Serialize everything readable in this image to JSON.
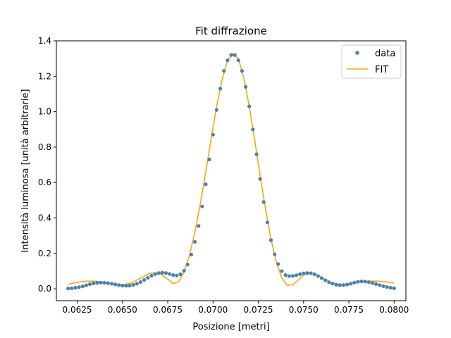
{
  "chart_data": {
    "type": "scatter",
    "title": "Fit diffrazione",
    "xlabel": "Posizione [metri]",
    "ylabel": "Intensità luminosa [unità arbitrarie]",
    "xlim": [
      0.06135,
      0.08065
    ],
    "ylim": [
      -0.067,
      1.4
    ],
    "x_ticks": [
      "0.0625",
      "0.0650",
      "0.0675",
      "0.0700",
      "0.0725",
      "0.0750",
      "0.0775",
      "0.0800"
    ],
    "x_tick_values": [
      0.0625,
      0.065,
      0.0675,
      0.07,
      0.0725,
      0.075,
      0.0775,
      0.08
    ],
    "y_ticks": [
      "0.0",
      "0.2",
      "0.4",
      "0.6",
      "0.8",
      "1.0",
      "1.2",
      "1.4"
    ],
    "y_tick_values": [
      0.0,
      0.2,
      0.4,
      0.6,
      0.8,
      1.0,
      1.2,
      1.4
    ],
    "grid": false,
    "legend": "top-right",
    "series": [
      {
        "name": "data",
        "kind": "markers",
        "color": "#4682b4",
        "points": [
          [
            0.062,
            0.002
          ],
          [
            0.0622,
            0.003
          ],
          [
            0.0624,
            0.006
          ],
          [
            0.0626,
            0.009
          ],
          [
            0.0628,
            0.014
          ],
          [
            0.063,
            0.02
          ],
          [
            0.0632,
            0.026
          ],
          [
            0.0634,
            0.031
          ],
          [
            0.0636,
            0.034
          ],
          [
            0.0638,
            0.035
          ],
          [
            0.064,
            0.034
          ],
          [
            0.0642,
            0.032
          ],
          [
            0.0644,
            0.029
          ],
          [
            0.0646,
            0.025
          ],
          [
            0.0648,
            0.021
          ],
          [
            0.065,
            0.018
          ],
          [
            0.0652,
            0.017
          ],
          [
            0.0654,
            0.018
          ],
          [
            0.0656,
            0.022
          ],
          [
            0.0658,
            0.029
          ],
          [
            0.066,
            0.038
          ],
          [
            0.0662,
            0.05
          ],
          [
            0.0664,
            0.062
          ],
          [
            0.0666,
            0.074
          ],
          [
            0.0668,
            0.083
          ],
          [
            0.067,
            0.089
          ],
          [
            0.0672,
            0.091
          ],
          [
            0.0674,
            0.089
          ],
          [
            0.0676,
            0.084
          ],
          [
            0.0678,
            0.078
          ],
          [
            0.068,
            0.075
          ],
          [
            0.0682,
            0.082
          ],
          [
            0.0684,
            0.102
          ],
          [
            0.0686,
            0.137
          ],
          [
            0.0688,
            0.193
          ],
          [
            0.069,
            0.265
          ],
          [
            0.0692,
            0.355
          ],
          [
            0.0694,
            0.465
          ],
          [
            0.0696,
            0.59
          ],
          [
            0.0698,
            0.73
          ],
          [
            0.07,
            0.87
          ],
          [
            0.0702,
            1.01
          ],
          [
            0.0704,
            1.13
          ],
          [
            0.0706,
            1.23
          ],
          [
            0.0708,
            1.29
          ],
          [
            0.071,
            1.32
          ],
          [
            0.0712,
            1.32
          ],
          [
            0.0714,
            1.29
          ],
          [
            0.0716,
            1.23
          ],
          [
            0.0718,
            1.14
          ],
          [
            0.072,
            1.03
          ],
          [
            0.0722,
            0.9
          ],
          [
            0.0724,
            0.76
          ],
          [
            0.0726,
            0.62
          ],
          [
            0.0728,
            0.49
          ],
          [
            0.073,
            0.375
          ],
          [
            0.0732,
            0.275
          ],
          [
            0.0734,
            0.195
          ],
          [
            0.0736,
            0.14
          ],
          [
            0.0738,
            0.1
          ],
          [
            0.074,
            0.078
          ],
          [
            0.0742,
            0.072
          ],
          [
            0.0744,
            0.073
          ],
          [
            0.0746,
            0.077
          ],
          [
            0.0748,
            0.083
          ],
          [
            0.075,
            0.087
          ],
          [
            0.0752,
            0.089
          ],
          [
            0.0754,
            0.088
          ],
          [
            0.0756,
            0.082
          ],
          [
            0.0758,
            0.072
          ],
          [
            0.076,
            0.06
          ],
          [
            0.0762,
            0.048
          ],
          [
            0.0764,
            0.037
          ],
          [
            0.0766,
            0.029
          ],
          [
            0.0768,
            0.023
          ],
          [
            0.077,
            0.021
          ],
          [
            0.0772,
            0.021
          ],
          [
            0.0774,
            0.024
          ],
          [
            0.0776,
            0.029
          ],
          [
            0.0778,
            0.035
          ],
          [
            0.078,
            0.04
          ],
          [
            0.0782,
            0.042
          ],
          [
            0.0784,
            0.041
          ],
          [
            0.0786,
            0.038
          ],
          [
            0.0788,
            0.033
          ],
          [
            0.079,
            0.027
          ],
          [
            0.0792,
            0.021
          ],
          [
            0.0794,
            0.015
          ],
          [
            0.0796,
            0.01
          ],
          [
            0.0798,
            0.006
          ],
          [
            0.08,
            0.003
          ]
        ]
      },
      {
        "name": "FIT",
        "kind": "line",
        "color": "#ffa500",
        "points": [
          [
            0.062,
            0.025
          ],
          [
            0.0625,
            0.037
          ],
          [
            0.063,
            0.043
          ],
          [
            0.0635,
            0.043
          ],
          [
            0.064,
            0.036
          ],
          [
            0.0645,
            0.027
          ],
          [
            0.065,
            0.023
          ],
          [
            0.0655,
            0.033
          ],
          [
            0.066,
            0.06
          ],
          [
            0.0665,
            0.088
          ],
          [
            0.067,
            0.09
          ],
          [
            0.0675,
            0.055
          ],
          [
            0.0678,
            0.03
          ],
          [
            0.0681,
            0.04
          ],
          [
            0.0684,
            0.095
          ],
          [
            0.0687,
            0.19
          ],
          [
            0.069,
            0.32
          ],
          [
            0.0693,
            0.48
          ],
          [
            0.0696,
            0.66
          ],
          [
            0.0699,
            0.85
          ],
          [
            0.0702,
            1.03
          ],
          [
            0.0705,
            1.18
          ],
          [
            0.0708,
            1.29
          ],
          [
            0.0711,
            1.33
          ],
          [
            0.0714,
            1.3
          ],
          [
            0.0717,
            1.19
          ],
          [
            0.072,
            1.03
          ],
          [
            0.0723,
            0.84
          ],
          [
            0.0726,
            0.64
          ],
          [
            0.0729,
            0.45
          ],
          [
            0.0732,
            0.28
          ],
          [
            0.0735,
            0.15
          ],
          [
            0.0738,
            0.06
          ],
          [
            0.0741,
            0.02
          ],
          [
            0.0744,
            0.022
          ],
          [
            0.0747,
            0.048
          ],
          [
            0.075,
            0.077
          ],
          [
            0.0753,
            0.09
          ],
          [
            0.0756,
            0.087
          ],
          [
            0.076,
            0.065
          ],
          [
            0.0765,
            0.038
          ],
          [
            0.077,
            0.024
          ],
          [
            0.0775,
            0.025
          ],
          [
            0.078,
            0.035
          ],
          [
            0.0785,
            0.042
          ],
          [
            0.079,
            0.044
          ],
          [
            0.0795,
            0.04
          ],
          [
            0.08,
            0.033
          ]
        ]
      }
    ]
  }
}
